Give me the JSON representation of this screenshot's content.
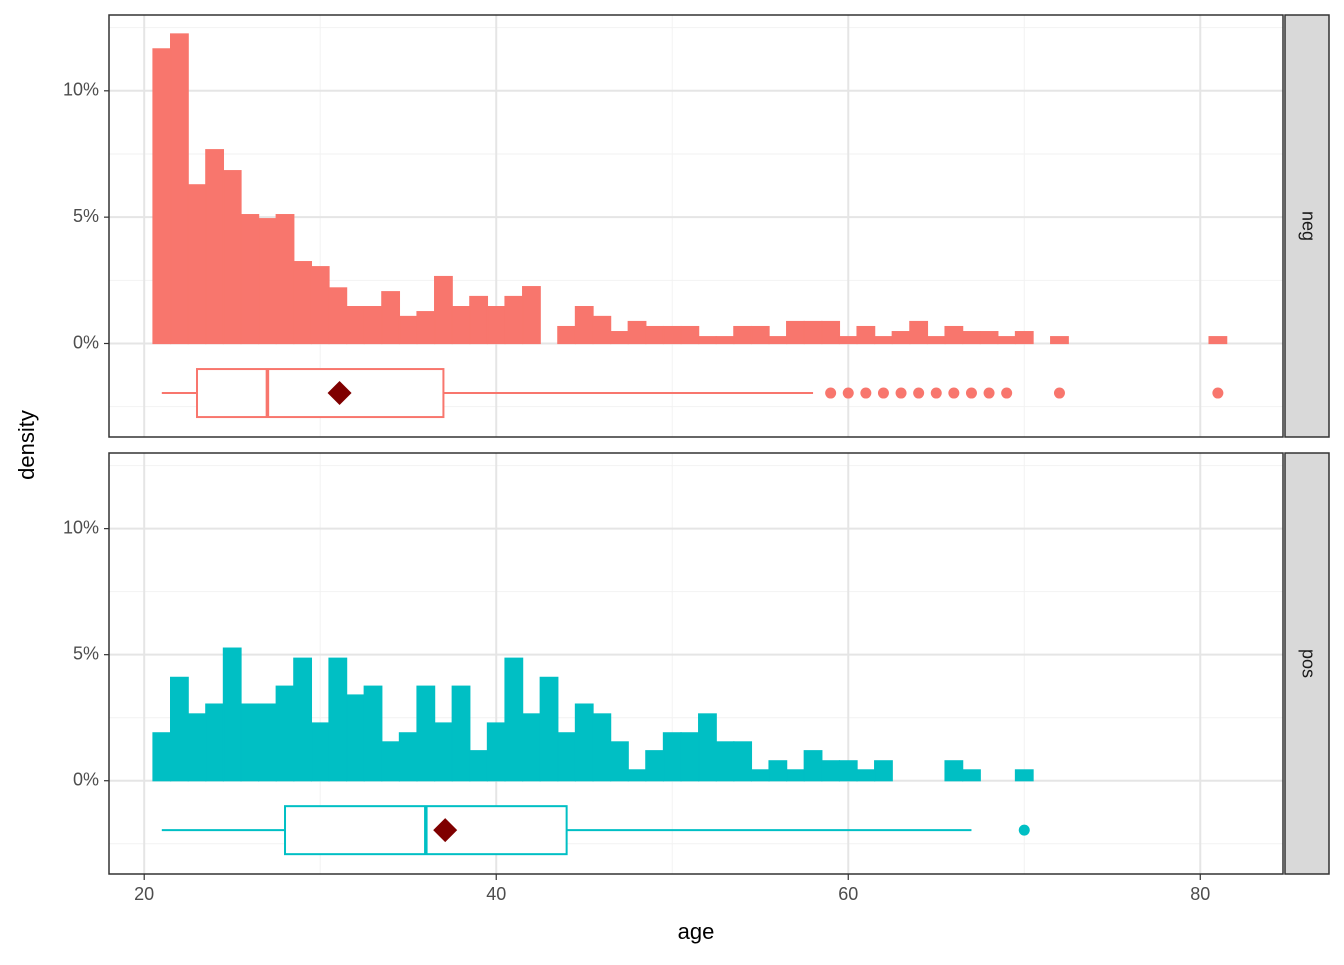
{
  "chart_data": {
    "type": "histogram",
    "x_label": "age",
    "y_label": "density",
    "xlim": [
      18,
      84.7
    ],
    "xticks": [
      20,
      40,
      60,
      80
    ],
    "x_minor_ticks": [
      30,
      50,
      70
    ],
    "ylim": [
      -3.7,
      13
    ],
    "yticks": [
      {
        "value": 0,
        "label": "0%"
      },
      {
        "value": 5,
        "label": "5%"
      },
      {
        "value": 10,
        "label": "10%"
      }
    ],
    "y_minor_ticks": [
      -2.5,
      2.5,
      7.5,
      12.5
    ],
    "grid": true,
    "mean_color": "#7f0000",
    "bins": [
      20.5,
      21.5,
      22.5,
      23.5,
      24.5,
      25.5,
      26.5,
      27.5,
      28.5,
      29.5,
      30.5,
      31.5,
      32.5,
      33.5,
      34.5,
      35.5,
      36.5,
      37.5,
      38.5,
      39.5,
      40.5,
      41.5,
      42.5,
      43.5,
      44.5,
      45.5,
      46.5,
      47.5,
      48.5,
      49.5,
      50.5,
      51.5,
      52.5,
      53.5,
      54.5,
      55.5,
      56.5,
      57.5,
      58.5,
      59.5,
      60.5,
      61.5,
      62.5,
      63.5,
      64.5,
      65.5,
      66.5,
      67.5,
      68.5,
      69.5,
      70.5,
      71.5,
      72.5,
      73.5,
      74.5,
      75.5,
      76.5,
      77.5,
      78.5,
      79.5,
      80.5,
      81.5
    ],
    "panels": [
      {
        "facet": "neg",
        "color": "#F8766D",
        "values": [
          11.66,
          12.25,
          6.28,
          7.67,
          6.84,
          5.1,
          4.94,
          5.1,
          3.24,
          3.04,
          2.2,
          1.46,
          1.46,
          2.05,
          1.07,
          1.26,
          2.65,
          1.46,
          1.86,
          1.46,
          1.86,
          2.25,
          0,
          0.67,
          1.46,
          1.07,
          0.47,
          0.87,
          0.67,
          0.67,
          0.67,
          0.27,
          0.27,
          0.67,
          0.67,
          0.27,
          0.87,
          0.87,
          0.87,
          0.27,
          0.67,
          0.27,
          0.47,
          0.87,
          0.27,
          0.67,
          0.47,
          0.47,
          0.27,
          0.47,
          0,
          0.27,
          0,
          0,
          0,
          0,
          0,
          0,
          0,
          0,
          0.27
        ],
        "boxplot": {
          "whisker_low": 21,
          "q1": 23,
          "median": 27,
          "q3": 37,
          "whisker_high": 58,
          "mean": 31.1,
          "outliers": [
            59,
            60,
            61,
            62,
            63,
            64,
            65,
            66,
            67,
            68,
            69,
            72,
            81
          ]
        }
      },
      {
        "facet": "pos",
        "color": "#00BFC4",
        "values": [
          1.9,
          4.1,
          2.65,
          3.04,
          5.26,
          3.04,
          3.04,
          3.75,
          4.86,
          2.29,
          4.86,
          3.4,
          3.75,
          1.54,
          1.9,
          3.75,
          2.29,
          3.75,
          1.19,
          2.29,
          4.86,
          2.65,
          4.1,
          1.9,
          3.04,
          2.65,
          1.54,
          0.43,
          1.19,
          1.9,
          1.9,
          2.65,
          1.54,
          1.54,
          0.43,
          0.79,
          0.43,
          1.19,
          0.79,
          0.79,
          0.43,
          0.79,
          0,
          0,
          0,
          0.79,
          0.43,
          0,
          0,
          0.43,
          0,
          0,
          0,
          0,
          0,
          0,
          0,
          0,
          0,
          0,
          0
        ],
        "boxplot": {
          "whisker_low": 21,
          "q1": 28,
          "median": 36,
          "q3": 44,
          "whisker_high": 67,
          "mean": 37.1,
          "outliers": [
            70
          ]
        }
      }
    ]
  }
}
